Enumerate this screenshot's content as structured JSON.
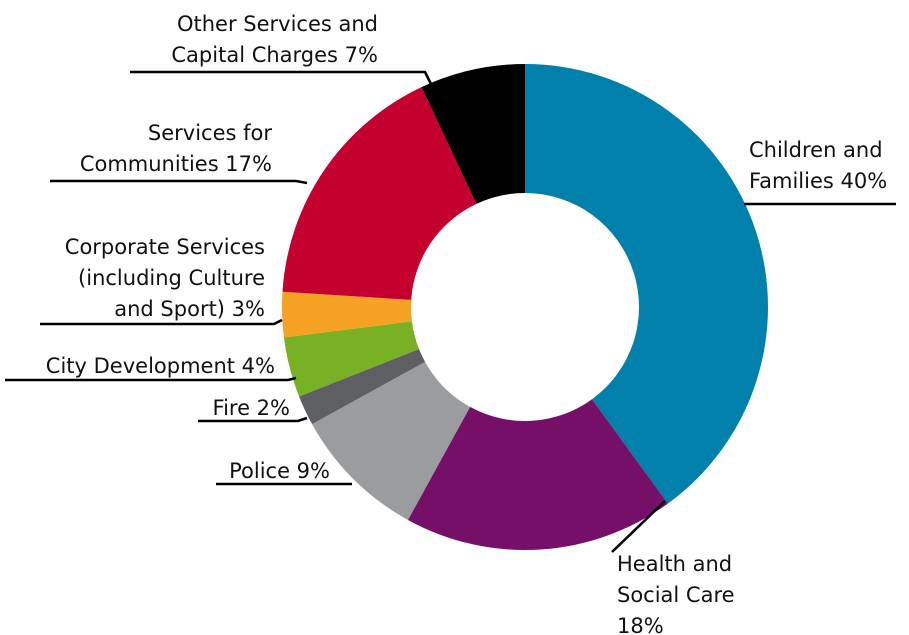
{
  "chart_data": {
    "type": "pie",
    "style": "donut",
    "title": "",
    "legend": "none",
    "slices": [
      {
        "lines": [
          "Children and",
          "Families 40%"
        ],
        "value": 40,
        "color": "#0080aa"
      },
      {
        "lines": [
          "Health and",
          "Social Care",
          "18%"
        ],
        "value": 18,
        "color": "#760f68"
      },
      {
        "lines": [
          "Police 9%"
        ],
        "value": 9,
        "color": "#9b9c9e"
      },
      {
        "lines": [
          "Fire 2%"
        ],
        "value": 2,
        "color": "#5e5f62"
      },
      {
        "lines": [
          "City Development 4%"
        ],
        "value": 4,
        "color": "#78b124"
      },
      {
        "lines": [
          "Corporate Services",
          "(including Culture",
          "and Sport) 3%"
        ],
        "value": 3,
        "color": "#f5a224"
      },
      {
        "lines": [
          "Services for",
          "Communities 17%"
        ],
        "value": 17,
        "color": "#c4002f"
      },
      {
        "lines": [
          "Other Services and",
          "Capital Charges 7%"
        ],
        "value": 7,
        "color": "#000000"
      }
    ]
  }
}
